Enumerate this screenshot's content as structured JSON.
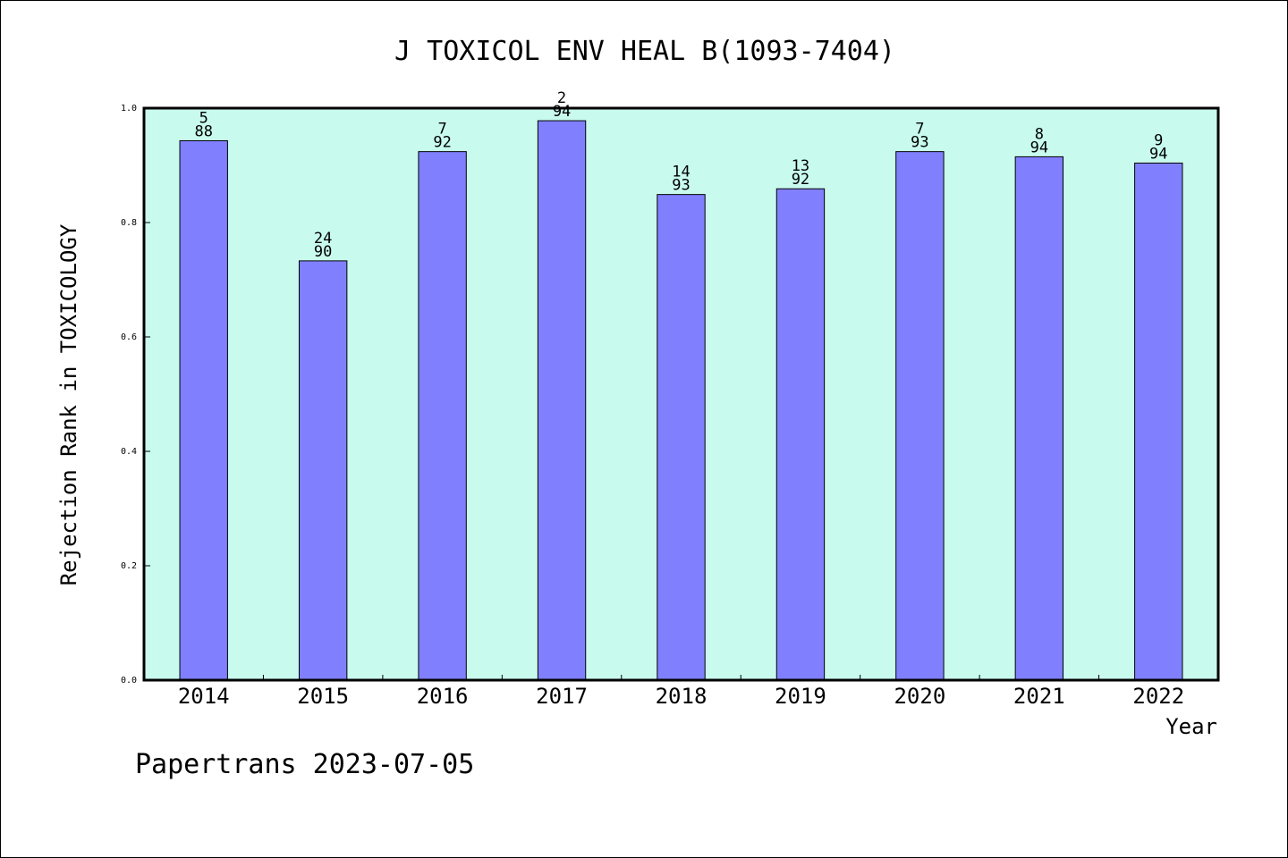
{
  "chart_data": {
    "type": "bar",
    "title": "J TOXICOL ENV HEAL B(1093-7404)",
    "xlabel": "Year",
    "ylabel": "Rejection Rank in TOXICOLOGY",
    "ylim": [
      0,
      1.0
    ],
    "yticks": [
      "0.0",
      "0.2",
      "0.4",
      "0.6",
      "0.8",
      "1.0"
    ],
    "categories": [
      "2014",
      "2015",
      "2016",
      "2017",
      "2018",
      "2019",
      "2020",
      "2021",
      "2022"
    ],
    "values": [
      0.943,
      0.733,
      0.924,
      0.978,
      0.849,
      0.859,
      0.924,
      0.915,
      0.904
    ],
    "ranks": [
      "5",
      "24",
      "7",
      "2",
      "14",
      "13",
      "7",
      "8",
      "9"
    ],
    "totals": [
      "88",
      "90",
      "92",
      "94",
      "93",
      "92",
      "93",
      "94",
      "94"
    ],
    "grid": false,
    "colors": {
      "plot_background": "#c8fbee",
      "bar_fill": "#8080ff",
      "bar_stroke": "#000000"
    }
  },
  "footer": {
    "credit": "Papertrans 2023-07-05"
  }
}
